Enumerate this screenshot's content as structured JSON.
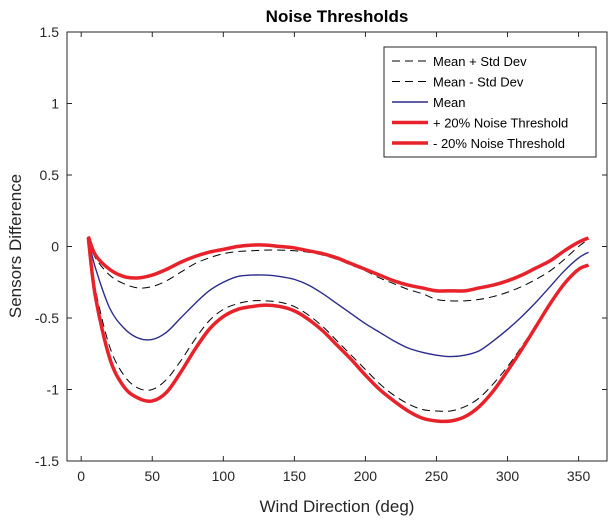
{
  "chart_data": {
    "type": "line",
    "title": "Noise Thresholds",
    "xlabel": "Wind Direction (deg)",
    "ylabel": "Sensors Difference",
    "xlim": [
      -10,
      370
    ],
    "ylim": [
      -1.5,
      1.5
    ],
    "xticks": [
      0,
      50,
      100,
      150,
      200,
      250,
      300,
      350
    ],
    "yticks": [
      -1.5,
      -1,
      -0.5,
      0,
      0.5,
      1,
      1.5
    ],
    "grid": false,
    "legend_position": "top-right",
    "x": [
      5,
      10,
      20,
      30,
      40,
      50,
      60,
      70,
      80,
      90,
      100,
      110,
      120,
      130,
      140,
      150,
      160,
      170,
      180,
      190,
      200,
      210,
      220,
      230,
      240,
      250,
      260,
      270,
      280,
      290,
      300,
      310,
      320,
      330,
      340,
      350,
      357
    ],
    "series": [
      {
        "name": "Mean + Std Dev",
        "color": "#000000",
        "style": "dashed",
        "values": [
          0.05,
          -0.08,
          -0.2,
          -0.26,
          -0.29,
          -0.28,
          -0.24,
          -0.18,
          -0.12,
          -0.08,
          -0.05,
          -0.035,
          -0.03,
          -0.025,
          -0.025,
          -0.03,
          -0.04,
          -0.06,
          -0.09,
          -0.13,
          -0.17,
          -0.22,
          -0.26,
          -0.3,
          -0.33,
          -0.37,
          -0.38,
          -0.38,
          -0.37,
          -0.35,
          -0.32,
          -0.28,
          -0.23,
          -0.17,
          -0.09,
          0.0,
          0.05
        ]
      },
      {
        "name": "Mean - Std Dev",
        "color": "#000000",
        "style": "dashed",
        "values": [
          0.03,
          -0.3,
          -0.7,
          -0.9,
          -0.99,
          -1.0,
          -0.93,
          -0.8,
          -0.65,
          -0.52,
          -0.44,
          -0.4,
          -0.38,
          -0.38,
          -0.39,
          -0.42,
          -0.48,
          -0.56,
          -0.66,
          -0.76,
          -0.86,
          -0.96,
          -1.04,
          -1.1,
          -1.14,
          -1.15,
          -1.15,
          -1.12,
          -1.06,
          -0.96,
          -0.84,
          -0.7,
          -0.55,
          -0.4,
          -0.25,
          -0.16,
          -0.13
        ]
      },
      {
        "name": "Mean",
        "color": "#2b2b8c",
        "style": "solid",
        "values": [
          0.05,
          -0.15,
          -0.43,
          -0.57,
          -0.64,
          -0.65,
          -0.6,
          -0.5,
          -0.4,
          -0.31,
          -0.25,
          -0.21,
          -0.2,
          -0.2,
          -0.21,
          -0.23,
          -0.27,
          -0.33,
          -0.4,
          -0.47,
          -0.54,
          -0.6,
          -0.66,
          -0.71,
          -0.74,
          -0.76,
          -0.77,
          -0.76,
          -0.73,
          -0.66,
          -0.58,
          -0.49,
          -0.39,
          -0.28,
          -0.17,
          -0.08,
          -0.04
        ]
      },
      {
        "name": "+ 20% Noise Threshold",
        "color": "#e8222a",
        "style": "thick",
        "values": [
          0.07,
          -0.06,
          -0.16,
          -0.21,
          -0.22,
          -0.2,
          -0.16,
          -0.11,
          -0.07,
          -0.04,
          -0.02,
          0.0,
          0.01,
          0.01,
          0.0,
          -0.01,
          -0.03,
          -0.05,
          -0.08,
          -0.12,
          -0.16,
          -0.2,
          -0.24,
          -0.27,
          -0.29,
          -0.31,
          -0.31,
          -0.31,
          -0.29,
          -0.27,
          -0.24,
          -0.2,
          -0.15,
          -0.1,
          -0.03,
          0.03,
          0.06
        ]
      },
      {
        "name": "- 20% Noise Threshold",
        "color": "#e8222a",
        "style": "thick",
        "values": [
          0.06,
          -0.35,
          -0.78,
          -0.98,
          -1.06,
          -1.08,
          -1.02,
          -0.88,
          -0.72,
          -0.58,
          -0.49,
          -0.44,
          -0.42,
          -0.41,
          -0.42,
          -0.45,
          -0.51,
          -0.59,
          -0.69,
          -0.79,
          -0.9,
          -1.0,
          -1.08,
          -1.15,
          -1.2,
          -1.22,
          -1.22,
          -1.19,
          -1.12,
          -1.01,
          -0.87,
          -0.72,
          -0.56,
          -0.4,
          -0.26,
          -0.16,
          -0.13
        ]
      }
    ]
  }
}
